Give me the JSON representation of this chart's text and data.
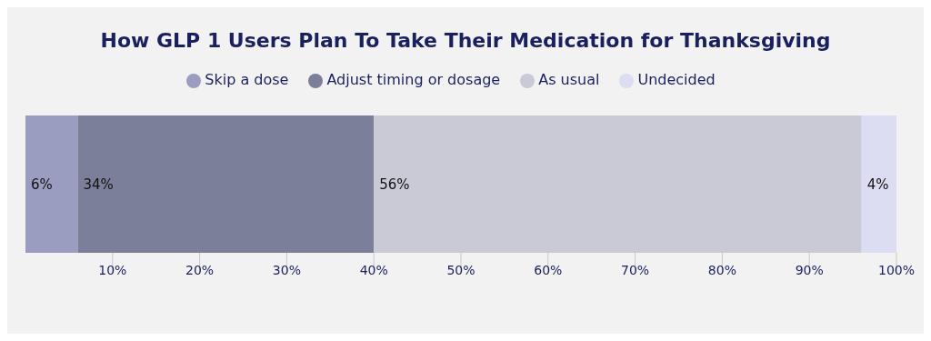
{
  "chart_data": {
    "type": "bar",
    "orientation": "horizontal",
    "stacked": true,
    "title": "How GLP 1 Users Plan To Take Their Medication for Thanksgiving",
    "categories": [
      null
    ],
    "series": [
      {
        "name": "Skip a dose",
        "color": "#9b9dc0",
        "values": [
          6
        ],
        "value_labels": [
          "6%"
        ]
      },
      {
        "name": "Adjust timing or dosage",
        "color": "#7c7f99",
        "values": [
          34
        ],
        "value_labels": [
          "34%"
        ]
      },
      {
        "name": "As usual",
        "color": "#c9cad6",
        "values": [
          56
        ],
        "value_labels": [
          "56%"
        ]
      },
      {
        "name": "Undecided",
        "color": "#dcdcf3",
        "values": [
          4
        ],
        "value_labels": [
          "4%"
        ]
      }
    ],
    "xlim": [
      0,
      100
    ],
    "xticks": [
      {
        "value": 10,
        "label": "10%"
      },
      {
        "value": 20,
        "label": "20%"
      },
      {
        "value": 30,
        "label": "30%"
      },
      {
        "value": 40,
        "label": "40%"
      },
      {
        "value": 50,
        "label": "50%"
      },
      {
        "value": 60,
        "label": "60%"
      },
      {
        "value": 70,
        "label": "70%"
      },
      {
        "value": 80,
        "label": "80%"
      },
      {
        "value": 90,
        "label": "90%"
      },
      {
        "value": 100,
        "label": "100%"
      }
    ],
    "legend": "top"
  }
}
